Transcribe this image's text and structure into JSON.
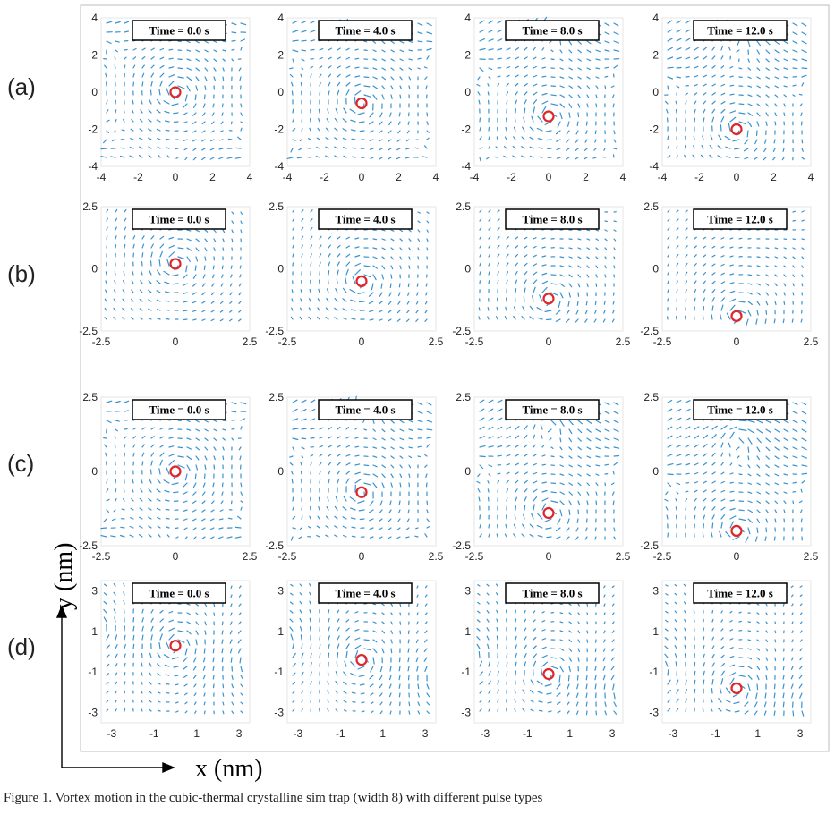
{
  "row_labels": [
    "(a)",
    "(b)",
    "(c)",
    "(d)"
  ],
  "time_labels": [
    "Time = 0.0 s",
    "Time = 4.0 s",
    "Time = 8.0 s",
    "Time = 12.0 s"
  ],
  "axis_x_label": "x (nm)",
  "axis_y_label": "y (nm)",
  "caption": "Figure 1. Vortex motion in the cubic-thermal crystalline sim trap (width 8) with different pulse types",
  "colors": {
    "arrows": "#3a93d0",
    "center": "#e0262b",
    "frame": "#bdbdbd"
  },
  "chart_data": [
    {
      "type": "quiver",
      "row": "(a)",
      "xticks": [
        "-4",
        "-2",
        "0",
        "2",
        "4"
      ],
      "yticks": [
        "4",
        "2",
        "0",
        "-2",
        "-4"
      ],
      "xlim": [
        -4,
        4
      ],
      "ylim": [
        -4,
        4
      ],
      "pattern": "hexagonal vortex lattice",
      "frames": [
        {
          "time": "Time = 0.0 s",
          "center": [
            0,
            0
          ]
        },
        {
          "time": "Time = 4.0 s",
          "center": [
            0,
            -0.6
          ]
        },
        {
          "time": "Time = 8.0 s",
          "center": [
            0,
            -1.3
          ]
        },
        {
          "time": "Time = 12.0 s",
          "center": [
            0,
            -2.0
          ]
        }
      ]
    },
    {
      "type": "quiver",
      "row": "(b)",
      "xticks": [
        "-2.5",
        "0",
        "2.5"
      ],
      "yticks": [
        "2.5",
        "0",
        "-2.5"
      ],
      "xlim": [
        -2.5,
        2.5
      ],
      "ylim": [
        -2.5,
        2.5
      ],
      "pattern": "single vortex",
      "frames": [
        {
          "time": "Time = 0.0 s",
          "center": [
            0,
            0.2
          ]
        },
        {
          "time": "Time = 4.0 s",
          "center": [
            0,
            -0.5
          ]
        },
        {
          "time": "Time = 8.0 s",
          "center": [
            0,
            -1.2
          ]
        },
        {
          "time": "Time = 12.0 s",
          "center": [
            0,
            -1.9
          ]
        }
      ]
    },
    {
      "type": "quiver",
      "row": "(c)",
      "xticks": [
        "-2.5",
        "0",
        "2.5"
      ],
      "yticks": [
        "2.5",
        "0",
        "-2.5"
      ],
      "xlim": [
        -2.5,
        2.5
      ],
      "ylim": [
        -2.5,
        2.5
      ],
      "pattern": "hexagonal vortex lattice",
      "frames": [
        {
          "time": "Time = 0.0 s",
          "center": [
            0,
            0
          ]
        },
        {
          "time": "Time = 4.0 s",
          "center": [
            0,
            -0.7
          ]
        },
        {
          "time": "Time = 8.0 s",
          "center": [
            0,
            -1.4
          ]
        },
        {
          "time": "Time = 12.0 s",
          "center": [
            0,
            -2.0
          ]
        }
      ]
    },
    {
      "type": "quiver",
      "row": "(d)",
      "xticks": [
        "-3",
        "-1",
        "1",
        "3"
      ],
      "yticks": [
        "3",
        "1",
        "-1",
        "-3"
      ],
      "xlim": [
        -3.5,
        3.5
      ],
      "ylim": [
        -3.5,
        3.5
      ],
      "pattern": "distorted vortex",
      "frames": [
        {
          "time": "Time = 0.0 s",
          "center": [
            0,
            0.3
          ]
        },
        {
          "time": "Time = 4.0 s",
          "center": [
            0,
            -0.4
          ]
        },
        {
          "time": "Time = 8.0 s",
          "center": [
            0,
            -1.1
          ]
        },
        {
          "time": "Time = 12.0 s",
          "center": [
            0,
            -1.8
          ]
        }
      ]
    }
  ]
}
